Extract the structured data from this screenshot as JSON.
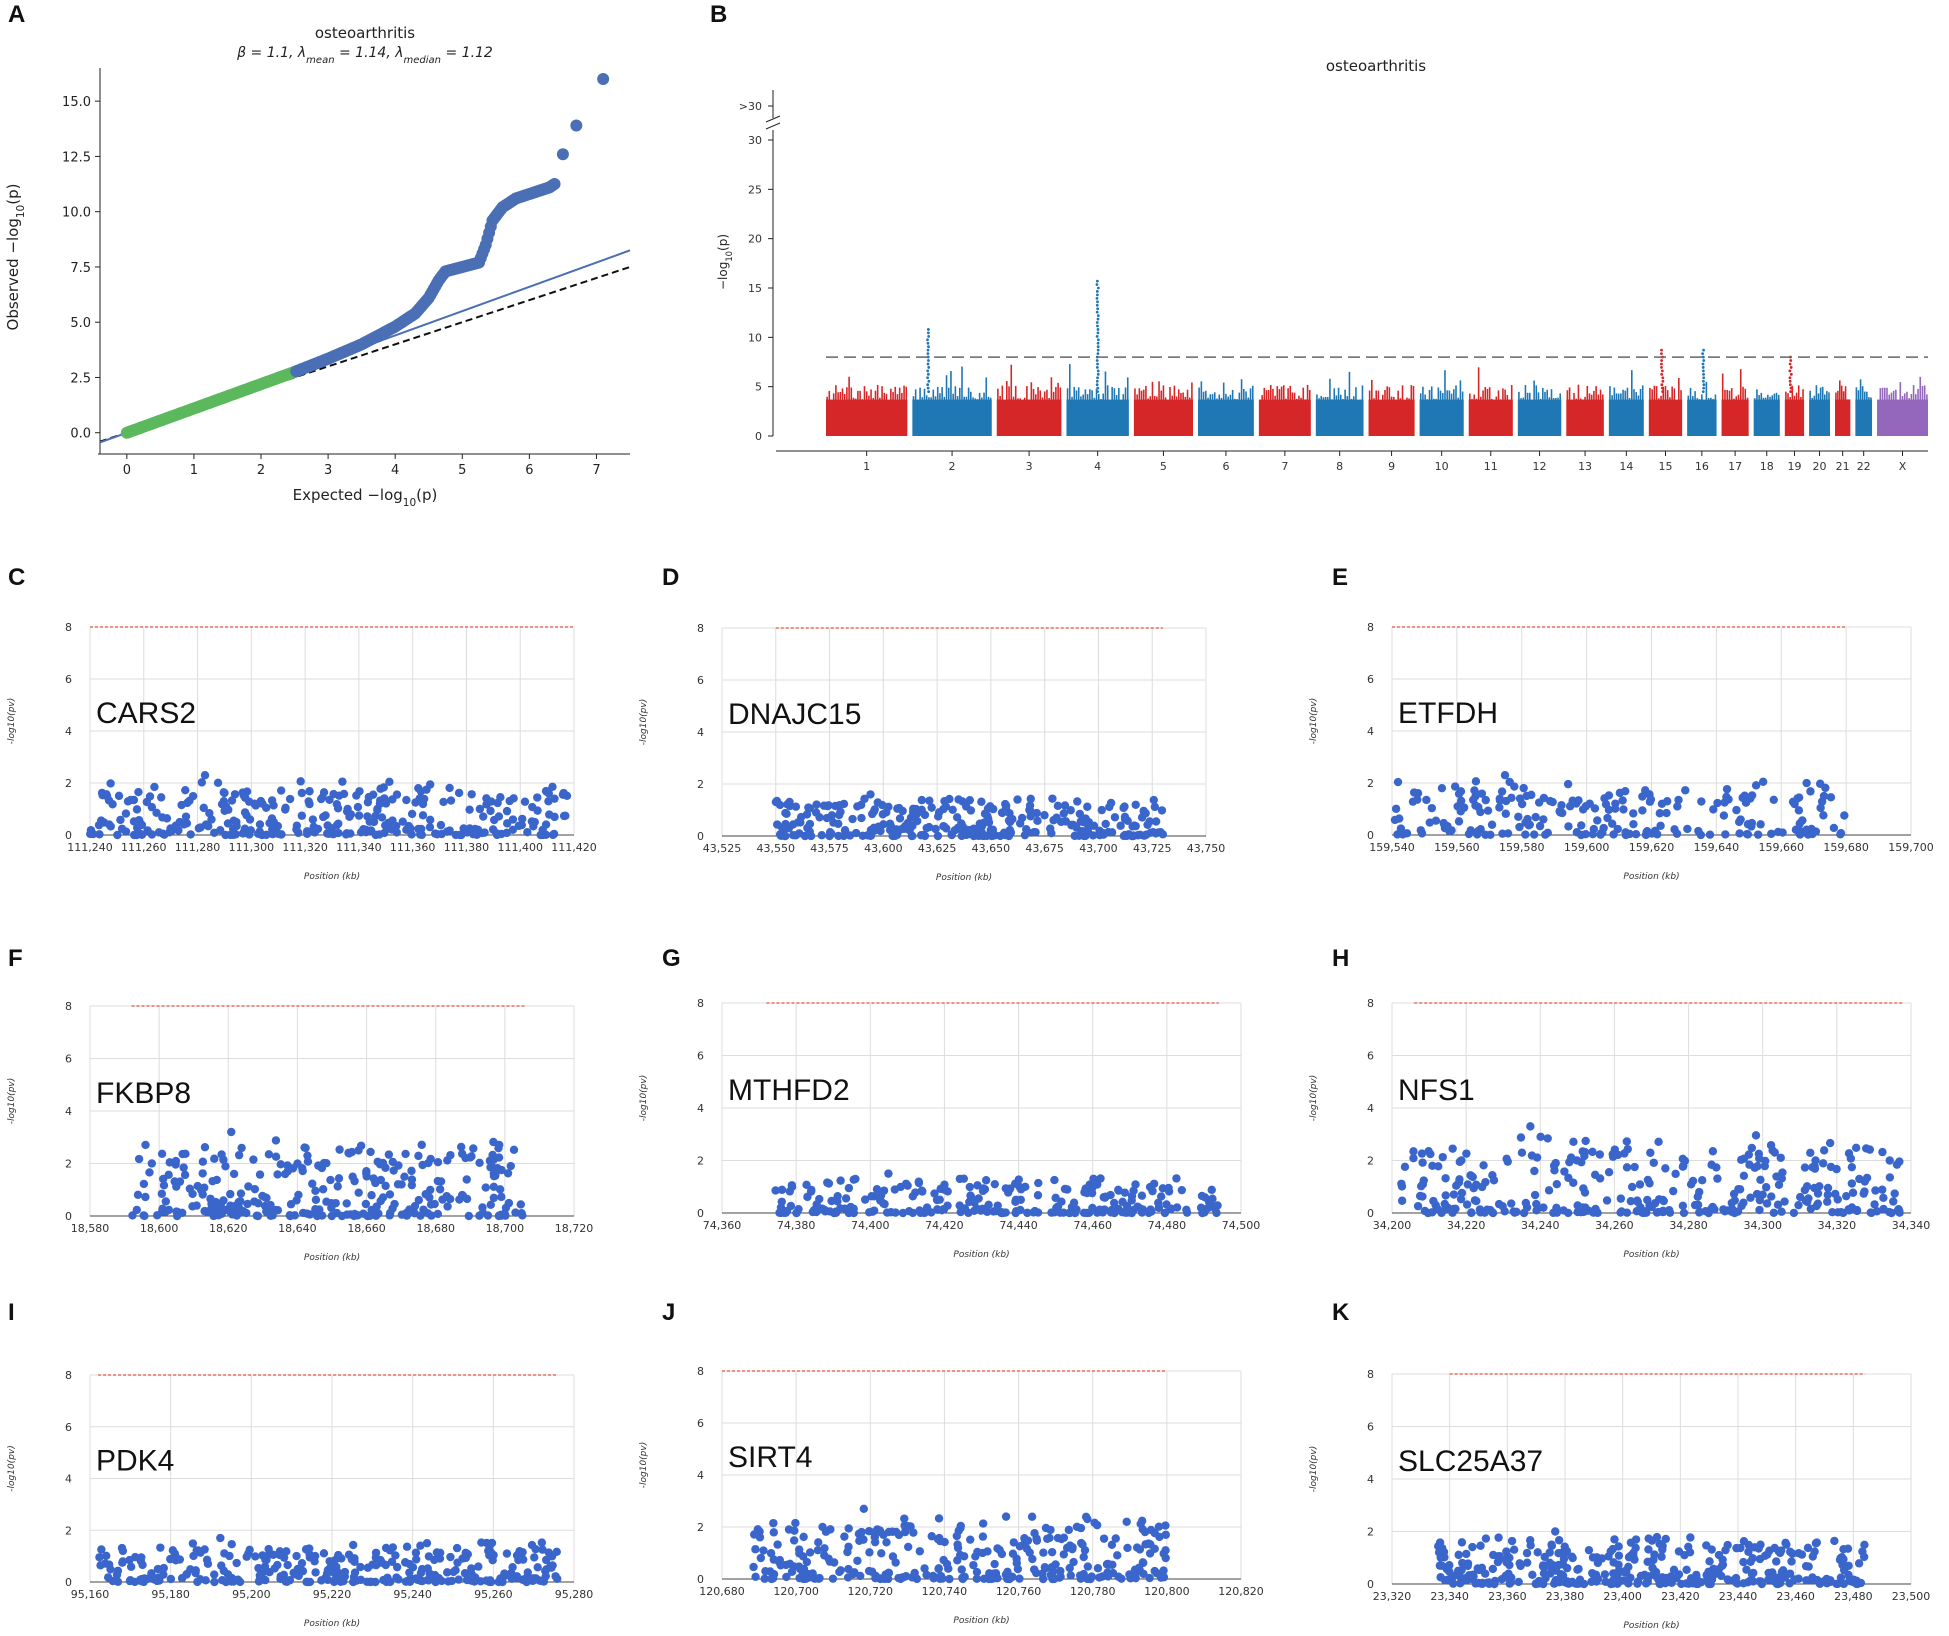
{
  "chart_data": [
    {
      "panel": "A",
      "type": "scatter",
      "title": "osteoarthritis",
      "subtitle": "β = 1.1, λmean = 1.14, λmedian = 1.12",
      "subtitle_parts": {
        "beta": "β = 1.1,",
        "lmean_pre": "λ",
        "lmean_sub": "mean",
        "lmean_val": "= 1.14,",
        "lmed_pre": "λ",
        "lmed_sub": "median",
        "lmed_val": "= 1.12"
      },
      "xlabel": "Expected −log10(p)",
      "xlabel_parts": {
        "pre": "Expected −log",
        "sub": "10",
        "post": "(p)"
      },
      "ylabel": "Observed −log10(p)",
      "ylabel_parts": {
        "pre": "Observed −log",
        "sub": "10",
        "post": "(p)"
      },
      "xlim": [
        -0.4,
        7.5
      ],
      "ylim": [
        -0.6,
        16.5
      ],
      "xticks": [
        "0",
        "1",
        "2",
        "3",
        "4",
        "5",
        "6",
        "7"
      ],
      "yticks": [
        "0.0",
        "2.5",
        "5.0",
        "7.5",
        "10.0",
        "12.5",
        "15.0"
      ],
      "observed_curve": [
        [
          0,
          0
        ],
        [
          0.5,
          0.55
        ],
        [
          1,
          1.1
        ],
        [
          1.5,
          1.65
        ],
        [
          2,
          2.2
        ],
        [
          2.5,
          2.75
        ],
        [
          3,
          3.35
        ],
        [
          3.5,
          4.0
        ],
        [
          4,
          4.8
        ],
        [
          4.3,
          5.4
        ],
        [
          4.5,
          6.1
        ],
        [
          4.65,
          6.9
        ],
        [
          4.75,
          7.3
        ],
        [
          5.0,
          7.5
        ],
        [
          5.25,
          7.7
        ],
        [
          5.35,
          8.5
        ],
        [
          5.45,
          9.6
        ],
        [
          5.6,
          10.2
        ],
        [
          5.8,
          10.6
        ],
        [
          6.0,
          10.8
        ],
        [
          6.3,
          11.1
        ],
        [
          6.4,
          11.3
        ]
      ],
      "top_points": [
        [
          6.5,
          12.6
        ],
        [
          6.7,
          13.9
        ],
        [
          7.1,
          16.0
        ]
      ],
      "green_range": [
        0,
        2.5
      ],
      "fit_line": [
        [
          -0.4,
          -0.44
        ],
        [
          7.5,
          8.25
        ]
      ],
      "null_line": [
        [
          -0.4,
          -0.4
        ],
        [
          7.5,
          7.5
        ]
      ],
      "colors": {
        "points": "#4a6fb5",
        "green": "#5cb85c",
        "fit": "#4a6fb5",
        "null": "#111111"
      }
    },
    {
      "panel": "B",
      "type": "manhattan",
      "title": "osteoarthritis",
      "ylabel": "−log10(p)",
      "ylabel_parts": {
        "pre": "−log",
        "sub": "10",
        "post": "(p)"
      },
      "ylim": [
        0,
        32
      ],
      "yticks": [
        "0",
        "5",
        "10",
        "15",
        "20",
        "25",
        "30"
      ],
      "ybreak_label": ">30",
      "threshold": 8,
      "chromosomes": [
        "1",
        "2",
        "3",
        "4",
        "5",
        "6",
        "7",
        "8",
        "9",
        "10",
        "11",
        "12",
        "13",
        "14",
        "15",
        "16",
        "17",
        "18",
        "19",
        "20",
        "21",
        "22",
        "X"
      ],
      "chrom_lengths": [
        249,
        243,
        198,
        191,
        181,
        171,
        159,
        146,
        141,
        135,
        135,
        133,
        115,
        107,
        102,
        90,
        83,
        80,
        59,
        64,
        47,
        51,
        156
      ],
      "chrom_colors": [
        "#d62728",
        "#1f77b4",
        "#d62728",
        "#1f77b4",
        "#d62728",
        "#1f77b4",
        "#d62728",
        "#1f77b4",
        "#d62728",
        "#1f77b4",
        "#d62728",
        "#1f77b4",
        "#d62728",
        "#1f77b4",
        "#d62728",
        "#1f77b4",
        "#d62728",
        "#1f77b4",
        "#d62728",
        "#1f77b4",
        "#d62728",
        "#1f77b4",
        "#9467bd"
      ],
      "base_height": 4.5,
      "peaks": [
        {
          "chrom": "2",
          "pos": 0.2,
          "value": 11
        },
        {
          "chrom": "4",
          "pos": 0.5,
          "value": 16
        },
        {
          "chrom": "15",
          "pos": 0.4,
          "value": 9
        },
        {
          "chrom": "16",
          "pos": 0.55,
          "value": 9
        },
        {
          "chrom": "19",
          "pos": 0.3,
          "value": 8
        }
      ]
    },
    {
      "panel": "C",
      "type": "scatter",
      "gene": "CARS2",
      "xlabel": "Position (kb)",
      "ylabel": "-log10(pv)",
      "xlim": [
        111240,
        111420
      ],
      "ylim": [
        0,
        8
      ],
      "threshold": 8,
      "threshold_range": [
        111240,
        111420
      ],
      "xticks": [
        "111,240",
        "111,260",
        "111,280",
        "111,300",
        "111,320",
        "111,340",
        "111,360",
        "111,380",
        "111,400",
        "111,420"
      ],
      "yticks": [
        "0",
        "2",
        "4",
        "6",
        "8"
      ],
      "points_range": [
        111240,
        111418
      ],
      "points_max": 2.3,
      "point_count": 320,
      "seed": 11
    },
    {
      "panel": "D",
      "type": "scatter",
      "gene": "DNAJC15",
      "xlabel": "Position (kb)",
      "ylabel": "-log10(pv)",
      "xlim": [
        43525,
        43750
      ],
      "ylim": [
        0,
        8
      ],
      "threshold": 8,
      "threshold_range": [
        43550,
        43730
      ],
      "xticks": [
        "43,525",
        "43,550",
        "43,575",
        "43,600",
        "43,625",
        "43,650",
        "43,675",
        "43,700",
        "43,725",
        "43,750"
      ],
      "yticks": [
        "0",
        "2",
        "4",
        "6",
        "8"
      ],
      "points_range": [
        43550,
        43730
      ],
      "points_max": 1.6,
      "point_count": 300,
      "seed": 22
    },
    {
      "panel": "E",
      "type": "scatter",
      "gene": "ETFDH",
      "xlabel": "Position (kb)",
      "ylabel": "-log10(pv)",
      "xlim": [
        159540,
        159700
      ],
      "ylim": [
        0,
        8
      ],
      "threshold": 8,
      "threshold_range": [
        159540,
        159680
      ],
      "xticks": [
        "159,540",
        "159,560",
        "159,580",
        "159,600",
        "159,620",
        "159,640",
        "159,660",
        "159,680",
        "159,700"
      ],
      "yticks": [
        "0",
        "2",
        "4",
        "6",
        "8"
      ],
      "points_range": [
        159540,
        159680
      ],
      "points_max": 2.3,
      "point_count": 220,
      "seed": 33
    },
    {
      "panel": "F",
      "type": "scatter",
      "gene": "FKBP8",
      "xlabel": "Position (kb)",
      "ylabel": "-log10(pv)",
      "xlim": [
        18580,
        18720
      ],
      "ylim": [
        0,
        8
      ],
      "threshold": 8,
      "threshold_range": [
        18592,
        18706
      ],
      "xticks": [
        "18,580",
        "18,600",
        "18,620",
        "18,640",
        "18,660",
        "18,680",
        "18,700",
        "18,720"
      ],
      "yticks": [
        "0",
        "2",
        "4",
        "6",
        "8"
      ],
      "points_range": [
        18592,
        18706
      ],
      "points_max": 3.2,
      "point_count": 300,
      "seed": 44
    },
    {
      "panel": "G",
      "type": "scatter",
      "gene": "MTHFD2",
      "xlabel": "Position (kb)",
      "ylabel": "-log10(pv)",
      "xlim": [
        74360,
        74500
      ],
      "ylim": [
        0,
        8
      ],
      "threshold": 8,
      "threshold_range": [
        74372,
        74494
      ],
      "xticks": [
        "74,360",
        "74,380",
        "74,400",
        "74,420",
        "74,440",
        "74,460",
        "74,480",
        "74,500"
      ],
      "yticks": [
        "0",
        "2",
        "4",
        "6",
        "8"
      ],
      "points_range": [
        74374,
        74494
      ],
      "points_max": 1.5,
      "point_count": 260,
      "seed": 55
    },
    {
      "panel": "H",
      "type": "scatter",
      "gene": "NFS1",
      "xlabel": "Position (kb)",
      "ylabel": "-log10(pv)",
      "xlim": [
        34200,
        34340
      ],
      "ylim": [
        0,
        8
      ],
      "threshold": 8,
      "threshold_range": [
        34206,
        34338
      ],
      "xticks": [
        "34,200",
        "34,220",
        "34,240",
        "34,260",
        "34,280",
        "34,300",
        "34,320",
        "34,340"
      ],
      "yticks": [
        "0",
        "2",
        "4",
        "6",
        "8"
      ],
      "points_range": [
        34202,
        34337
      ],
      "points_max": 3.3,
      "point_count": 330,
      "seed": 66
    },
    {
      "panel": "I",
      "type": "scatter",
      "gene": "PDK4",
      "xlabel": "Position (kb)",
      "ylabel": "-log10(pv)",
      "xlim": [
        95160,
        95280
      ],
      "ylim": [
        0,
        8
      ],
      "threshold": 8,
      "threshold_range": [
        95162,
        95276
      ],
      "xticks": [
        "95,160",
        "95,180",
        "95,200",
        "95,220",
        "95,240",
        "95,260",
        "95,280"
      ],
      "yticks": [
        "0",
        "2",
        "4",
        "6",
        "8"
      ],
      "points_range": [
        95162,
        95276
      ],
      "points_max": 1.7,
      "point_count": 330,
      "seed": 77
    },
    {
      "panel": "J",
      "type": "scatter",
      "gene": "SIRT4",
      "xlabel": "Position (kb)",
      "ylabel": "-log10(pv)",
      "xlim": [
        120680,
        120820
      ],
      "ylim": [
        0,
        8
      ],
      "threshold": 8,
      "threshold_range": [
        120680,
        120800
      ],
      "xticks": [
        "120,680",
        "120,700",
        "120,720",
        "120,740",
        "120,760",
        "120,780",
        "120,800",
        "120,820"
      ],
      "yticks": [
        "0",
        "2",
        "4",
        "6",
        "8"
      ],
      "points_range": [
        120688,
        120800
      ],
      "points_max": 2.7,
      "point_count": 320,
      "seed": 88
    },
    {
      "panel": "K",
      "type": "scatter",
      "gene": "SLC25A37",
      "xlabel": "Position (kb)",
      "ylabel": "-log10(pv)",
      "xlim": [
        23320,
        23500
      ],
      "ylim": [
        0,
        8
      ],
      "threshold": 8,
      "threshold_range": [
        23340,
        23484
      ],
      "xticks": [
        "23,320",
        "23,340",
        "23,360",
        "23,380",
        "23,400",
        "23,420",
        "23,440",
        "23,460",
        "23,480",
        "23,500"
      ],
      "yticks": [
        "0",
        "2",
        "4",
        "6",
        "8"
      ],
      "points_range": [
        23336,
        23484
      ],
      "points_max": 2.0,
      "point_count": 380,
      "seed": 99
    }
  ]
}
